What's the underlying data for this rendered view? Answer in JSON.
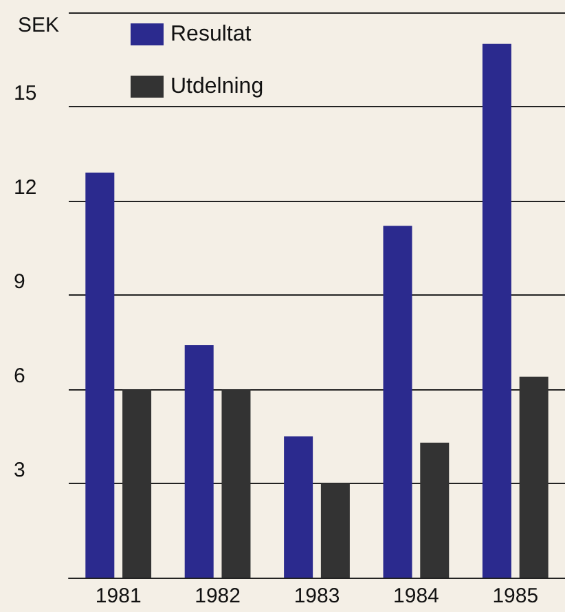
{
  "chart_data": {
    "type": "bar",
    "ylabel": "SEK",
    "categories": [
      "1981",
      "1982",
      "1983",
      "1984",
      "1985"
    ],
    "series": [
      {
        "name": "Resultat",
        "color": "#2b2a8e",
        "values": [
          12.9,
          7.4,
          4.5,
          11.2,
          17.0
        ]
      },
      {
        "name": "Utdelning",
        "color": "#333333",
        "values": [
          6.0,
          6.0,
          3.0,
          4.3,
          6.4
        ]
      }
    ],
    "ylim": [
      0,
      18
    ],
    "yticks": [
      {
        "value": 0,
        "label": null
      },
      3,
      6,
      9,
      12,
      15,
      {
        "value": 18,
        "label": null
      }
    ],
    "grid": "y",
    "legend": "top left"
  }
}
